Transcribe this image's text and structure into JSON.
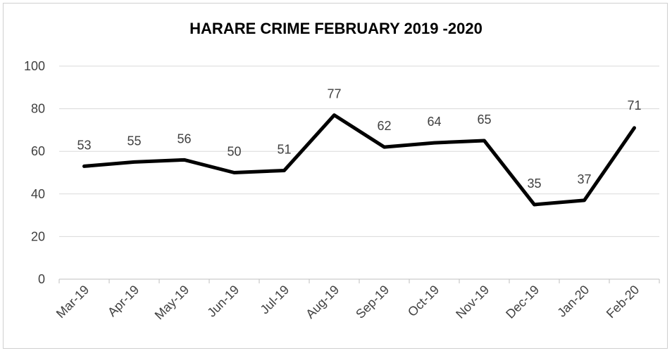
{
  "chart_data": {
    "type": "line",
    "title": "HARARE CRIME FEBRUARY 2019 -2020",
    "xlabel": "",
    "ylabel": "",
    "categories": [
      "Mar-19",
      "Apr-19",
      "May-19",
      "Jun-19",
      "Jul-19",
      "Aug-19",
      "Sep-19",
      "Oct-19",
      "Nov-19",
      "Dec-19",
      "Jan-20",
      "Feb-20"
    ],
    "values": [
      53,
      55,
      56,
      50,
      51,
      77,
      62,
      64,
      65,
      35,
      37,
      71
    ],
    "ylim": [
      0,
      100
    ],
    "yticks": [
      "0",
      "20",
      "40",
      "60",
      "80",
      "100"
    ],
    "grid": true,
    "legend": "none",
    "colors": {
      "line": "#000000",
      "grid": "#d9d9d9",
      "axis": "#bfbfbf",
      "text": "#404040"
    }
  }
}
